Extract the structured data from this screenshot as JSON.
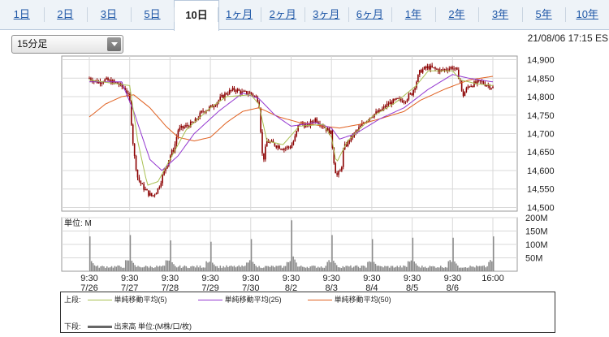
{
  "tabs": [
    "1日",
    "2日",
    "3日",
    "5日",
    "10日",
    "1ヶ月",
    "2ヶ月",
    "3ヶ月",
    "6ヶ月",
    "1年",
    "2年",
    "3年",
    "5年",
    "10年"
  ],
  "active_tab": 4,
  "interval_select": "15分足",
  "timestamp": "21/08/06 17:15 ES",
  "volume_unit_label": "単位: M",
  "legend": {
    "upper_label": "上段:",
    "lower_label": "下段:",
    "ma5": "単純移動平均(5)",
    "ma25": "単純移動平均(25)",
    "ma50": "単純移動平均(50)",
    "volume": "出来高 単位:(M株/口/枚)"
  },
  "colors": {
    "candle": "#8b0000",
    "ma5": "#a8c050",
    "ma25": "#9438d0",
    "ma50": "#e06020",
    "volume": "#8a8a8a",
    "grid": "#d8d8d8"
  },
  "chart_data": [
    {
      "type": "candlestick",
      "ylim": [
        14490,
        14910
      ],
      "y_ticks": [
        "14,900",
        "14,850",
        "14,800",
        "14,750",
        "14,700",
        "14,650",
        "14,600",
        "14,550",
        "14,500"
      ],
      "x_labels": [
        {
          "time": "9:30",
          "date": "7/26"
        },
        {
          "time": "9:30",
          "date": "7/27"
        },
        {
          "time": "9:30",
          "date": "7/28"
        },
        {
          "time": "9:30",
          "date": "7/29"
        },
        {
          "time": "9:30",
          "date": "7/30"
        },
        {
          "time": "9:30",
          "date": "8/2"
        },
        {
          "time": "9:30",
          "date": "8/3"
        },
        {
          "time": "9:30",
          "date": "8/4"
        },
        {
          "time": "9:30",
          "date": "8/5"
        },
        {
          "time": "9:30",
          "date": "8/6"
        },
        {
          "time": "16:00",
          "date": ""
        }
      ],
      "close_path": [
        [
          0,
          14850
        ],
        [
          0.05,
          14845
        ],
        [
          0.1,
          14840
        ],
        [
          0.2,
          14845
        ],
        [
          0.35,
          14835
        ],
        [
          0.45,
          14820
        ],
        [
          0.5,
          14790
        ],
        [
          0.55,
          14650
        ],
        [
          0.6,
          14580
        ],
        [
          0.65,
          14560
        ],
        [
          0.72,
          14540
        ],
        [
          0.78,
          14530
        ],
        [
          0.85,
          14550
        ],
        [
          0.95,
          14610
        ],
        [
          1.0,
          14640
        ],
        [
          1.05,
          14660
        ],
        [
          1.1,
          14710
        ],
        [
          1.2,
          14720
        ],
        [
          1.3,
          14730
        ],
        [
          1.4,
          14760
        ],
        [
          1.5,
          14770
        ],
        [
          1.6,
          14790
        ],
        [
          1.7,
          14810
        ],
        [
          1.8,
          14820
        ],
        [
          1.9,
          14810
        ],
        [
          2.0,
          14810
        ],
        [
          2.05,
          14800
        ],
        [
          2.1,
          14790
        ],
        [
          2.15,
          14620
        ],
        [
          2.2,
          14680
        ],
        [
          2.3,
          14670
        ],
        [
          2.4,
          14660
        ],
        [
          2.5,
          14665
        ],
        [
          2.55,
          14690
        ],
        [
          2.6,
          14730
        ],
        [
          2.7,
          14720
        ],
        [
          2.8,
          14740
        ],
        [
          2.9,
          14720
        ],
        [
          3.0,
          14700
        ],
        [
          3.02,
          14640
        ],
        [
          3.06,
          14585
        ],
        [
          3.12,
          14600
        ],
        [
          3.15,
          14660
        ],
        [
          3.25,
          14690
        ],
        [
          3.4,
          14730
        ],
        [
          3.5,
          14750
        ],
        [
          3.6,
          14760
        ],
        [
          3.7,
          14780
        ],
        [
          3.8,
          14790
        ],
        [
          3.9,
          14790
        ],
        [
          4.0,
          14810
        ],
        [
          4.05,
          14840
        ],
        [
          4.1,
          14870
        ],
        [
          4.2,
          14880
        ],
        [
          4.35,
          14870
        ],
        [
          4.5,
          14880
        ],
        [
          4.55,
          14870
        ],
        [
          4.6,
          14840
        ],
        [
          4.62,
          14800
        ],
        [
          4.7,
          14830
        ],
        [
          4.85,
          14840
        ],
        [
          5.0,
          14825
        ]
      ],
      "ma5_path": [
        [
          0,
          14845
        ],
        [
          0.5,
          14830
        ],
        [
          0.6,
          14680
        ],
        [
          0.72,
          14560
        ],
        [
          0.85,
          14570
        ],
        [
          1.0,
          14630
        ],
        [
          1.2,
          14710
        ],
        [
          1.5,
          14770
        ],
        [
          1.7,
          14800
        ],
        [
          2.0,
          14805
        ],
        [
          2.1,
          14780
        ],
        [
          2.2,
          14680
        ],
        [
          2.4,
          14670
        ],
        [
          2.6,
          14720
        ],
        [
          2.9,
          14725
        ],
        [
          3.0,
          14690
        ],
        [
          3.06,
          14620
        ],
        [
          3.2,
          14680
        ],
        [
          3.5,
          14745
        ],
        [
          3.8,
          14785
        ],
        [
          4.05,
          14830
        ],
        [
          4.2,
          14870
        ],
        [
          4.5,
          14870
        ],
        [
          4.6,
          14845
        ],
        [
          4.8,
          14835
        ],
        [
          5.0,
          14830
        ]
      ],
      "ma25_path": [
        [
          0,
          14840
        ],
        [
          0.4,
          14840
        ],
        [
          0.55,
          14760
        ],
        [
          0.75,
          14630
        ],
        [
          0.9,
          14600
        ],
        [
          1.1,
          14640
        ],
        [
          1.3,
          14700
        ],
        [
          1.6,
          14760
        ],
        [
          1.9,
          14810
        ],
        [
          2.1,
          14795
        ],
        [
          2.3,
          14750
        ],
        [
          2.5,
          14720
        ],
        [
          2.8,
          14730
        ],
        [
          3.0,
          14715
        ],
        [
          3.1,
          14685
        ],
        [
          3.3,
          14700
        ],
        [
          3.6,
          14740
        ],
        [
          3.9,
          14770
        ],
        [
          4.2,
          14820
        ],
        [
          4.5,
          14860
        ],
        [
          4.7,
          14850
        ],
        [
          5.0,
          14840
        ]
      ],
      "ma50_path": [
        [
          0,
          14745
        ],
        [
          0.2,
          14780
        ],
        [
          0.4,
          14800
        ],
        [
          0.55,
          14805
        ],
        [
          0.75,
          14770
        ],
        [
          0.95,
          14720
        ],
        [
          1.1,
          14690
        ],
        [
          1.3,
          14680
        ],
        [
          1.5,
          14690
        ],
        [
          1.7,
          14730
        ],
        [
          1.9,
          14760
        ],
        [
          2.1,
          14770
        ],
        [
          2.35,
          14745
        ],
        [
          2.6,
          14730
        ],
        [
          2.9,
          14720
        ],
        [
          3.1,
          14715
        ],
        [
          3.35,
          14725
        ],
        [
          3.6,
          14740
        ],
        [
          3.9,
          14760
        ],
        [
          4.1,
          14790
        ],
        [
          4.4,
          14820
        ],
        [
          4.7,
          14845
        ],
        [
          5.0,
          14855
        ]
      ]
    },
    {
      "type": "bar",
      "series_name": "出来高",
      "unit": "M",
      "ylim": [
        0,
        200
      ],
      "y_ticks": [
        "200M",
        "150M",
        "100M",
        "50M"
      ],
      "session_spikes": [
        130,
        135,
        115,
        110,
        120,
        190,
        135,
        120,
        125,
        125,
        130
      ],
      "baseline": 12
    }
  ]
}
